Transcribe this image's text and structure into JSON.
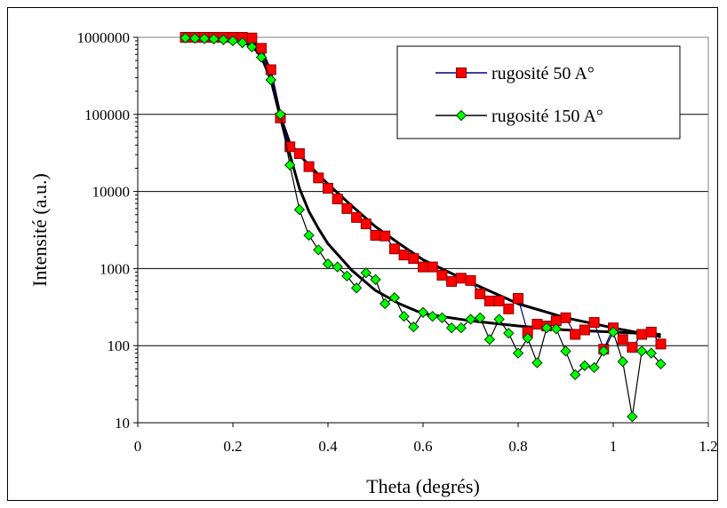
{
  "chart_data": {
    "type": "line",
    "title": "",
    "xlabel": "Theta (degrés)",
    "ylabel": "Intensité (a.u.)",
    "xlim": [
      0,
      1.2
    ],
    "ylim": [
      10,
      1000000
    ],
    "y_scale": "log",
    "grid": "horizontal",
    "legend_position": "top-right",
    "x_ticks": [
      "0",
      "0.2",
      "0.4",
      "0.6",
      "0.8",
      "1",
      "1.2"
    ],
    "y_ticks": [
      "10",
      "100",
      "1000",
      "10000",
      "100000",
      "1000000"
    ],
    "series": [
      {
        "name": "rugosité 50 A°",
        "marker": "square",
        "marker_color": "#ff0000",
        "line_color": "#000080",
        "x": [
          0.1,
          0.12,
          0.14,
          0.16,
          0.18,
          0.2,
          0.22,
          0.24,
          0.26,
          0.28,
          0.3,
          0.32,
          0.34,
          0.36,
          0.38,
          0.4,
          0.42,
          0.44,
          0.46,
          0.48,
          0.5,
          0.52,
          0.54,
          0.56,
          0.58,
          0.6,
          0.62,
          0.64,
          0.66,
          0.68,
          0.7,
          0.72,
          0.74,
          0.76,
          0.78,
          0.8,
          0.82,
          0.84,
          0.86,
          0.88,
          0.9,
          0.92,
          0.94,
          0.96,
          0.98,
          1.0,
          1.02,
          1.04,
          1.06,
          1.08,
          1.1
        ],
        "y": [
          1000000,
          1000000,
          1000000,
          1000000,
          1000000,
          1000000,
          1000000,
          980000,
          720000,
          380000,
          90000,
          38000,
          31000,
          21000,
          15000,
          11000,
          8000,
          6000,
          4600,
          3800,
          2700,
          2650,
          1800,
          1500,
          1350,
          1050,
          1050,
          820,
          680,
          750,
          700,
          470,
          380,
          380,
          300,
          410,
          150,
          190,
          180,
          210,
          230,
          140,
          160,
          200,
          90,
          170,
          120,
          95,
          140,
          150,
          105
        ]
      },
      {
        "name": "rugosité 150 A°",
        "marker": "diamond",
        "marker_color": "#00ff00",
        "line_color": "#000000",
        "x": [
          0.1,
          0.12,
          0.14,
          0.16,
          0.18,
          0.2,
          0.22,
          0.24,
          0.26,
          0.28,
          0.3,
          0.32,
          0.34,
          0.36,
          0.38,
          0.4,
          0.42,
          0.44,
          0.46,
          0.48,
          0.5,
          0.52,
          0.54,
          0.56,
          0.58,
          0.6,
          0.62,
          0.64,
          0.66,
          0.68,
          0.7,
          0.72,
          0.74,
          0.76,
          0.78,
          0.8,
          0.82,
          0.84,
          0.86,
          0.88,
          0.9,
          0.92,
          0.94,
          0.96,
          0.98,
          1.0,
          1.02,
          1.04,
          1.06,
          1.08,
          1.1
        ],
        "y": [
          980000,
          970000,
          960000,
          950000,
          930000,
          900000,
          850000,
          750000,
          550000,
          280000,
          100000,
          22000,
          5800,
          2700,
          1750,
          1150,
          1050,
          800,
          560,
          880,
          720,
          350,
          420,
          240,
          175,
          270,
          240,
          230,
          170,
          170,
          220,
          230,
          120,
          220,
          145,
          80,
          125,
          60,
          170,
          165,
          85,
          42,
          55,
          52,
          85,
          150,
          62,
          12,
          85,
          80,
          58
        ]
      }
    ],
    "fit_curves": [
      {
        "x": [
          0.1,
          0.2,
          0.24,
          0.26,
          0.28,
          0.3,
          0.32,
          0.34,
          0.36,
          0.4,
          0.45,
          0.5,
          0.55,
          0.6,
          0.7,
          0.8,
          0.9,
          1.0,
          1.1
        ],
        "y": [
          1000000,
          1000000,
          920000,
          700000,
          350000,
          95000,
          42000,
          30000,
          22000,
          12500,
          6500,
          3500,
          2100,
          1300,
          660,
          350,
          230,
          170,
          130
        ]
      },
      {
        "x": [
          0.1,
          0.2,
          0.24,
          0.26,
          0.28,
          0.3,
          0.32,
          0.34,
          0.36,
          0.38,
          0.4,
          0.45,
          0.5,
          0.55,
          0.6,
          0.7,
          0.8,
          0.9,
          1.0,
          1.1
        ],
        "y": [
          990000,
          930000,
          780000,
          560000,
          280000,
          90000,
          30000,
          11000,
          5500,
          3300,
          2100,
          950,
          520,
          350,
          260,
          210,
          180,
          160,
          150,
          140
        ]
      }
    ]
  }
}
